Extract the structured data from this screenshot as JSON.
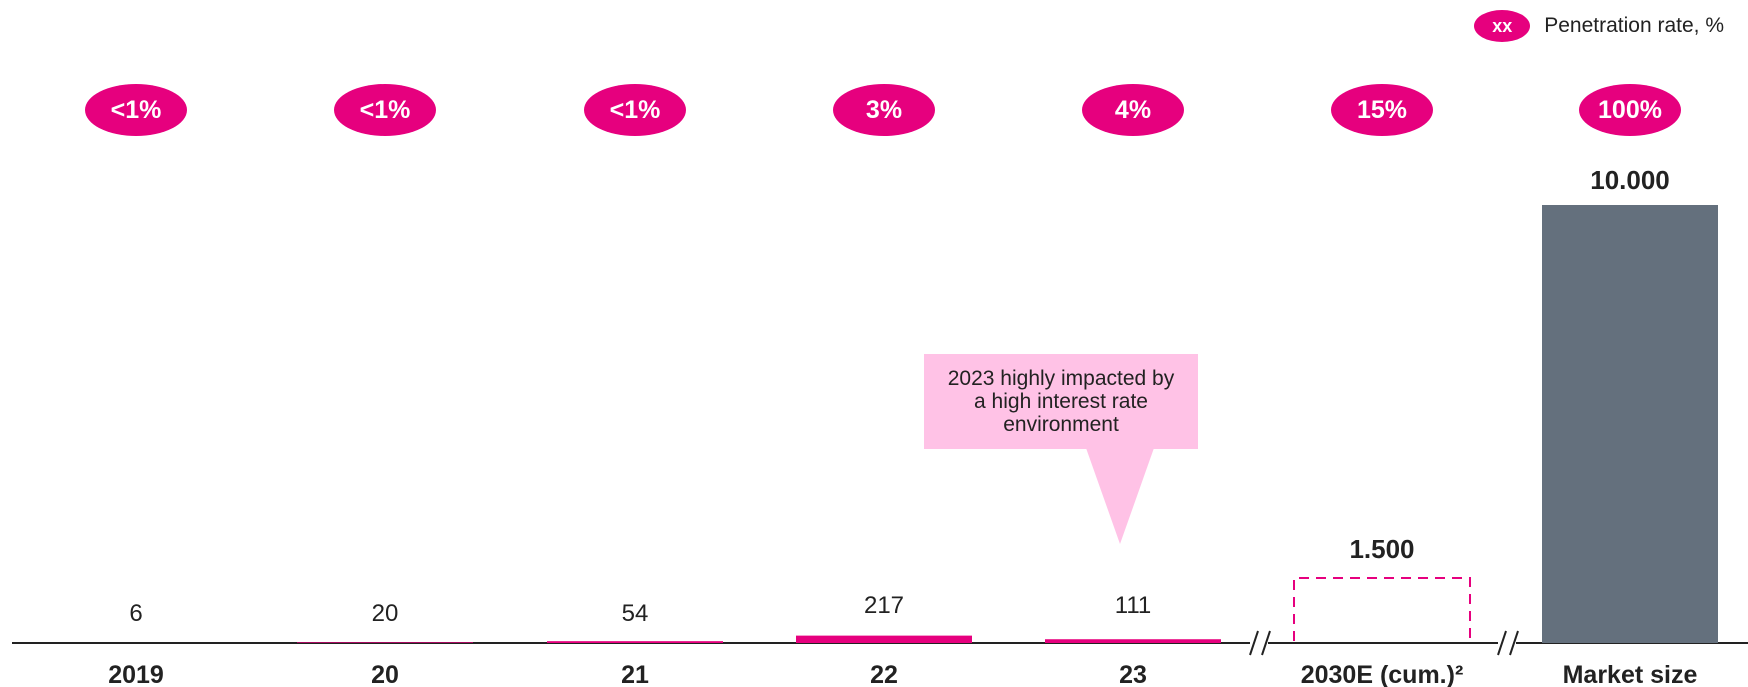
{
  "legend": {
    "marker": "xx",
    "label": "Penetration rate, %"
  },
  "callout": {
    "text": "2023 highly impacted by a high interest rate environment"
  },
  "chart_data": {
    "type": "bar",
    "categories": [
      "2019",
      "20",
      "21",
      "22",
      "23",
      "2030E (cum.)²",
      "Market size"
    ],
    "values": [
      6,
      20,
      54,
      217,
      111,
      1500,
      10000
    ],
    "value_labels": [
      "6",
      "20",
      "54",
      "217",
      "111",
      "1.500",
      "10.000"
    ],
    "penetration_rates": [
      "<1%",
      "<1%",
      "<1%",
      "3%",
      "4%",
      "15%",
      "100%"
    ],
    "bar_styles": [
      "solid",
      "solid",
      "solid",
      "solid",
      "solid",
      "dashed",
      "solid"
    ],
    "axis_breaks_after": [
      "23",
      "2030E (cum.)²"
    ],
    "ylim": [
      0,
      10000
    ],
    "grid": false,
    "xlabel": "",
    "ylabel": "",
    "colors": {
      "accent": "#E6007E",
      "market": "#64707D",
      "callout": "#FFC2E6",
      "text": "#222222"
    }
  }
}
